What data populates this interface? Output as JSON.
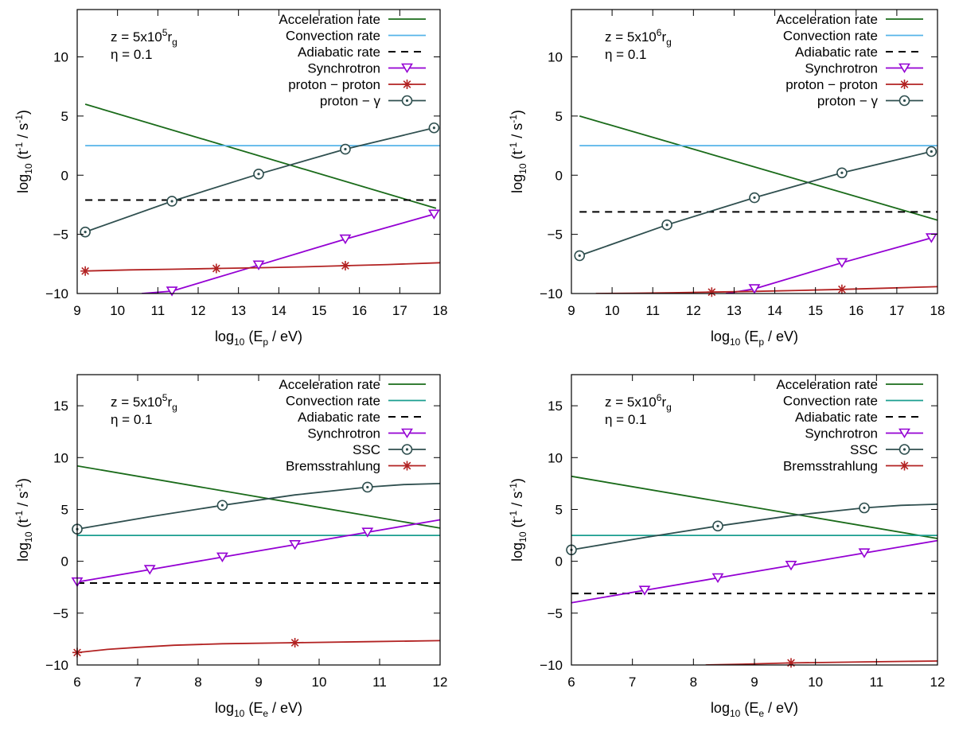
{
  "chart_data": [
    {
      "type": "line",
      "annotation": {
        "z_prefix": "z = 5x10",
        "z_exp": "5",
        "z_sub": "g",
        "z_r": "r",
        "eta": "η = 0.1"
      },
      "xlabel": {
        "prefix": "log",
        "sub": "10",
        "mid": " (E",
        "sub2": "p",
        "suffix": " / eV)"
      },
      "ylabel": {
        "prefix": "log",
        "sub": "10",
        "mid": " (t",
        "sup": "-1",
        "mid2": " / s",
        "sup2": "-1",
        "suffix": ")"
      },
      "xlim": [
        9,
        18
      ],
      "ylim": [
        -10,
        14
      ],
      "xticks": [
        9,
        10,
        11,
        12,
        13,
        14,
        15,
        16,
        17,
        18
      ],
      "xtick_labels": [
        "9",
        "10",
        "11",
        "12",
        "13",
        "14",
        "15",
        "16",
        "17",
        "18"
      ],
      "yticks": [
        -10,
        -5,
        0,
        5,
        10
      ],
      "ytick_labels": [
        "−10",
        "−5",
        "0",
        "5",
        "10"
      ],
      "series": [
        {
          "name": "Acceleration rate",
          "color": "#1a6b1a",
          "style": "solid",
          "marker": "none",
          "x": [
            9.2,
            17.9
          ],
          "y": [
            6.0,
            -2.8
          ]
        },
        {
          "name": "Convection rate",
          "color": "#56b4e9",
          "style": "solid",
          "marker": "none",
          "x": [
            9.2,
            18
          ],
          "y": [
            2.5,
            2.5
          ]
        },
        {
          "name": "Adiabatic rate",
          "color": "#000000",
          "style": "dashed",
          "marker": "none",
          "x": [
            9.2,
            18
          ],
          "y": [
            -2.1,
            -2.1
          ]
        },
        {
          "name": "Synchrotron",
          "color": "#9400d3",
          "style": "solid",
          "marker": "triangle",
          "x": [
            10.6,
            11.35,
            13.5,
            15.65,
            17.85
          ],
          "y": [
            -10,
            -9.8,
            -7.6,
            -5.4,
            -3.3
          ],
          "marker_idx": [
            1,
            2,
            3,
            4
          ]
        },
        {
          "name": "proton − proton",
          "color": "#b22222",
          "style": "solid",
          "marker": "star",
          "x": [
            9.2,
            10.3,
            11.35,
            12.45,
            13.5,
            14.6,
            15.65,
            16.7,
            18
          ],
          "y": [
            -8.1,
            -8.0,
            -7.95,
            -7.88,
            -7.82,
            -7.75,
            -7.65,
            -7.55,
            -7.4
          ],
          "marker_idx": [
            0,
            3,
            6
          ]
        },
        {
          "name": "proton − γ",
          "color": "#2f4f4f",
          "style": "solid",
          "marker": "circle",
          "x": [
            9.2,
            11.35,
            13.5,
            15.65,
            17.85
          ],
          "y": [
            -4.8,
            -2.2,
            0.1,
            2.2,
            4.0
          ],
          "marker_idx": [
            0,
            1,
            2,
            3,
            4
          ]
        }
      ]
    },
    {
      "type": "line",
      "annotation": {
        "z_prefix": "z = 5x10",
        "z_exp": "6",
        "z_sub": "g",
        "z_r": "r",
        "eta": "η = 0.1"
      },
      "xlabel": {
        "prefix": "log",
        "sub": "10",
        "mid": " (E",
        "sub2": "p",
        "suffix": " / eV)"
      },
      "ylabel": {
        "prefix": "log",
        "sub": "10",
        "mid": " (t",
        "sup": "-1",
        "mid2": " / s",
        "sup2": "-1",
        "suffix": ")"
      },
      "xlim": [
        9,
        18
      ],
      "ylim": [
        -10,
        14
      ],
      "xticks": [
        9,
        10,
        11,
        12,
        13,
        14,
        15,
        16,
        17,
        18
      ],
      "xtick_labels": [
        "9",
        "10",
        "11",
        "12",
        "13",
        "14",
        "15",
        "16",
        "17",
        "18"
      ],
      "yticks": [
        -10,
        -5,
        0,
        5,
        10
      ],
      "ytick_labels": [
        "−10",
        "−5",
        "0",
        "5",
        "10"
      ],
      "series": [
        {
          "name": "Acceleration rate",
          "color": "#1a6b1a",
          "style": "solid",
          "marker": "none",
          "x": [
            9.2,
            18
          ],
          "y": [
            5.0,
            -3.8
          ]
        },
        {
          "name": "Convection rate",
          "color": "#56b4e9",
          "style": "solid",
          "marker": "none",
          "x": [
            9.2,
            18
          ],
          "y": [
            2.5,
            2.5
          ]
        },
        {
          "name": "Adiabatic rate",
          "color": "#000000",
          "style": "dashed",
          "marker": "none",
          "x": [
            9.2,
            18
          ],
          "y": [
            -3.1,
            -3.1
          ]
        },
        {
          "name": "Synchrotron",
          "color": "#9400d3",
          "style": "solid",
          "marker": "triangle",
          "x": [
            12.8,
            13.5,
            15.65,
            17.85
          ],
          "y": [
            -10,
            -9.6,
            -7.4,
            -5.3
          ],
          "marker_idx": [
            1,
            2,
            3
          ]
        },
        {
          "name": "proton − proton",
          "color": "#b22222",
          "style": "solid",
          "marker": "star",
          "x": [
            9.6,
            10.5,
            11.5,
            12.45,
            13.5,
            14.6,
            15.65,
            16.7,
            18
          ],
          "y": [
            -10,
            -9.98,
            -9.93,
            -9.88,
            -9.82,
            -9.74,
            -9.65,
            -9.55,
            -9.42
          ],
          "marker_idx": [
            3,
            6
          ]
        },
        {
          "name": "proton − γ",
          "color": "#2f4f4f",
          "style": "solid",
          "marker": "circle",
          "x": [
            9.2,
            11.35,
            13.5,
            15.65,
            17.85
          ],
          "y": [
            -6.8,
            -4.2,
            -1.9,
            0.2,
            2.0
          ],
          "marker_idx": [
            0,
            1,
            2,
            3,
            4
          ]
        }
      ]
    },
    {
      "type": "line",
      "annotation": {
        "z_prefix": "z = 5x10",
        "z_exp": "5",
        "z_sub": "g",
        "z_r": "r",
        "eta": "η = 0.1"
      },
      "xlabel": {
        "prefix": "log",
        "sub": "10",
        "mid": " (E",
        "sub2": "e",
        "suffix": " / eV)"
      },
      "ylabel": {
        "prefix": "log",
        "sub": "10",
        "mid": " (t",
        "sup": "-1",
        "mid2": " / s",
        "sup2": "-1",
        "suffix": ")"
      },
      "xlim": [
        6,
        12
      ],
      "ylim": [
        -10,
        18
      ],
      "xticks": [
        6,
        7,
        8,
        9,
        10,
        11,
        12
      ],
      "xtick_labels": [
        "6",
        "7",
        "8",
        "9",
        "10",
        "11",
        "12"
      ],
      "yticks": [
        -10,
        -5,
        0,
        5,
        10,
        15
      ],
      "ytick_labels": [
        "−10",
        "−5",
        "0",
        "5",
        "10",
        "15"
      ],
      "series": [
        {
          "name": "Acceleration rate",
          "color": "#1a6b1a",
          "style": "solid",
          "marker": "none",
          "x": [
            6,
            12
          ],
          "y": [
            9.2,
            3.2
          ]
        },
        {
          "name": "Convection rate",
          "color": "#1a9e8f",
          "style": "solid",
          "marker": "none",
          "x": [
            6,
            12
          ],
          "y": [
            2.5,
            2.5
          ]
        },
        {
          "name": "Adiabatic rate",
          "color": "#000000",
          "style": "dashed",
          "marker": "none",
          "x": [
            6,
            12
          ],
          "y": [
            -2.1,
            -2.1
          ]
        },
        {
          "name": "Synchrotron",
          "color": "#9400d3",
          "style": "solid",
          "marker": "triangle",
          "x": [
            6,
            7.2,
            8.4,
            9.6,
            10.8,
            12
          ],
          "y": [
            -2.0,
            -0.8,
            0.4,
            1.6,
            2.8,
            4.0
          ],
          "marker_idx": [
            0,
            1,
            2,
            3,
            4
          ]
        },
        {
          "name": "SSC",
          "color": "#2f4f4f",
          "style": "solid",
          "marker": "circle",
          "x": [
            6,
            7.2,
            8.4,
            9.6,
            10.8,
            11.4,
            12
          ],
          "y": [
            3.1,
            4.3,
            5.4,
            6.4,
            7.15,
            7.4,
            7.5
          ],
          "marker_idx": [
            0,
            2,
            4
          ]
        },
        {
          "name": "Bremsstrahlung",
          "color": "#b22222",
          "style": "solid",
          "marker": "star",
          "x": [
            6,
            6.5,
            7,
            7.6,
            8.4,
            9.6,
            10.8,
            12
          ],
          "y": [
            -8.8,
            -8.5,
            -8.3,
            -8.1,
            -7.95,
            -7.85,
            -7.75,
            -7.65
          ],
          "marker_idx": [
            0,
            5
          ]
        }
      ]
    },
    {
      "type": "line",
      "annotation": {
        "z_prefix": "z = 5x10",
        "z_exp": "6",
        "z_sub": "g",
        "z_r": "r",
        "eta": "η = 0.1"
      },
      "xlabel": {
        "prefix": "log",
        "sub": "10",
        "mid": " (E",
        "sub2": "e",
        "suffix": " / eV)"
      },
      "ylabel": {
        "prefix": "log",
        "sub": "10",
        "mid": " (t",
        "sup": "-1",
        "mid2": " / s",
        "sup2": "-1",
        "suffix": ")"
      },
      "xlim": [
        6,
        12
      ],
      "ylim": [
        -10,
        18
      ],
      "xticks": [
        6,
        7,
        8,
        9,
        10,
        11,
        12
      ],
      "xtick_labels": [
        "6",
        "7",
        "8",
        "9",
        "10",
        "11",
        "12"
      ],
      "yticks": [
        -10,
        -5,
        0,
        5,
        10,
        15
      ],
      "ytick_labels": [
        "−10",
        "−5",
        "0",
        "5",
        "10",
        "15"
      ],
      "series": [
        {
          "name": "Acceleration rate",
          "color": "#1a6b1a",
          "style": "solid",
          "marker": "none",
          "x": [
            6,
            12
          ],
          "y": [
            8.2,
            2.2
          ]
        },
        {
          "name": "Convection rate",
          "color": "#1a9e8f",
          "style": "solid",
          "marker": "none",
          "x": [
            6,
            12
          ],
          "y": [
            2.5,
            2.5
          ]
        },
        {
          "name": "Adiabatic rate",
          "color": "#000000",
          "style": "dashed",
          "marker": "none",
          "x": [
            6,
            12
          ],
          "y": [
            -3.1,
            -3.1
          ]
        },
        {
          "name": "Synchrotron",
          "color": "#9400d3",
          "style": "solid",
          "marker": "triangle",
          "x": [
            6,
            7.2,
            8.4,
            9.6,
            10.8,
            12
          ],
          "y": [
            -4.0,
            -2.8,
            -1.6,
            -0.4,
            0.8,
            2.0
          ],
          "marker_idx": [
            1,
            2,
            3,
            4
          ]
        },
        {
          "name": "SSC",
          "color": "#2f4f4f",
          "style": "solid",
          "marker": "circle",
          "x": [
            6,
            7.2,
            8.4,
            9.6,
            10.8,
            11.4,
            12
          ],
          "y": [
            1.1,
            2.3,
            3.4,
            4.4,
            5.15,
            5.4,
            5.5
          ],
          "marker_idx": [
            0,
            2,
            4
          ]
        },
        {
          "name": "Bremsstrahlung",
          "color": "#b22222",
          "style": "solid",
          "marker": "star",
          "x": [
            8.2,
            8.8,
            9.6,
            10.8,
            12
          ],
          "y": [
            -10,
            -9.92,
            -9.8,
            -9.7,
            -9.62
          ],
          "marker_idx": [
            2
          ]
        }
      ]
    }
  ]
}
